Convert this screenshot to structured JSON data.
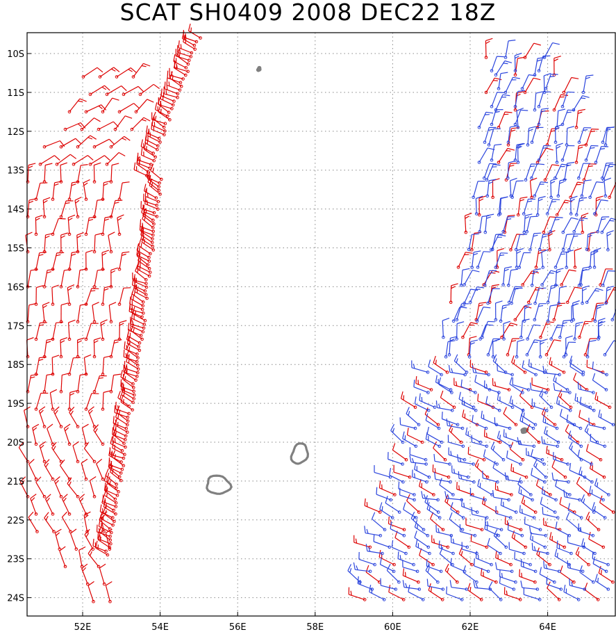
{
  "title": "SCAT SH0409 2008 DEC22 18Z",
  "axes": {
    "lat_labels": [
      "10S",
      "11S",
      "12S",
      "13S",
      "14S",
      "15S",
      "16S",
      "17S",
      "18S",
      "19S",
      "20S",
      "21S",
      "22S",
      "23S",
      "24S"
    ],
    "lon_labels": [
      "52E",
      "54E",
      "56E",
      "58E",
      "60E",
      "62E",
      "64E"
    ],
    "lon_range": [
      50.8,
      65.8
    ],
    "lat_range": [
      -9.5,
      -24.5
    ]
  },
  "colors": {
    "red_barb": "#dd0000",
    "blue_barb": "#2a44dd",
    "land": "#808080",
    "grid": "#888888",
    "frame": "#000000"
  },
  "islands": [
    {
      "name": "Reunion",
      "lon": 55.5,
      "lat": -21.1
    },
    {
      "name": "Mauritius",
      "lon": 57.6,
      "lat": -20.3
    },
    {
      "name": "Tromelin",
      "lon": 56.55,
      "lat": -10.4
    },
    {
      "name": "Cargados",
      "lon": 63.4,
      "lat": -19.7
    }
  ]
}
